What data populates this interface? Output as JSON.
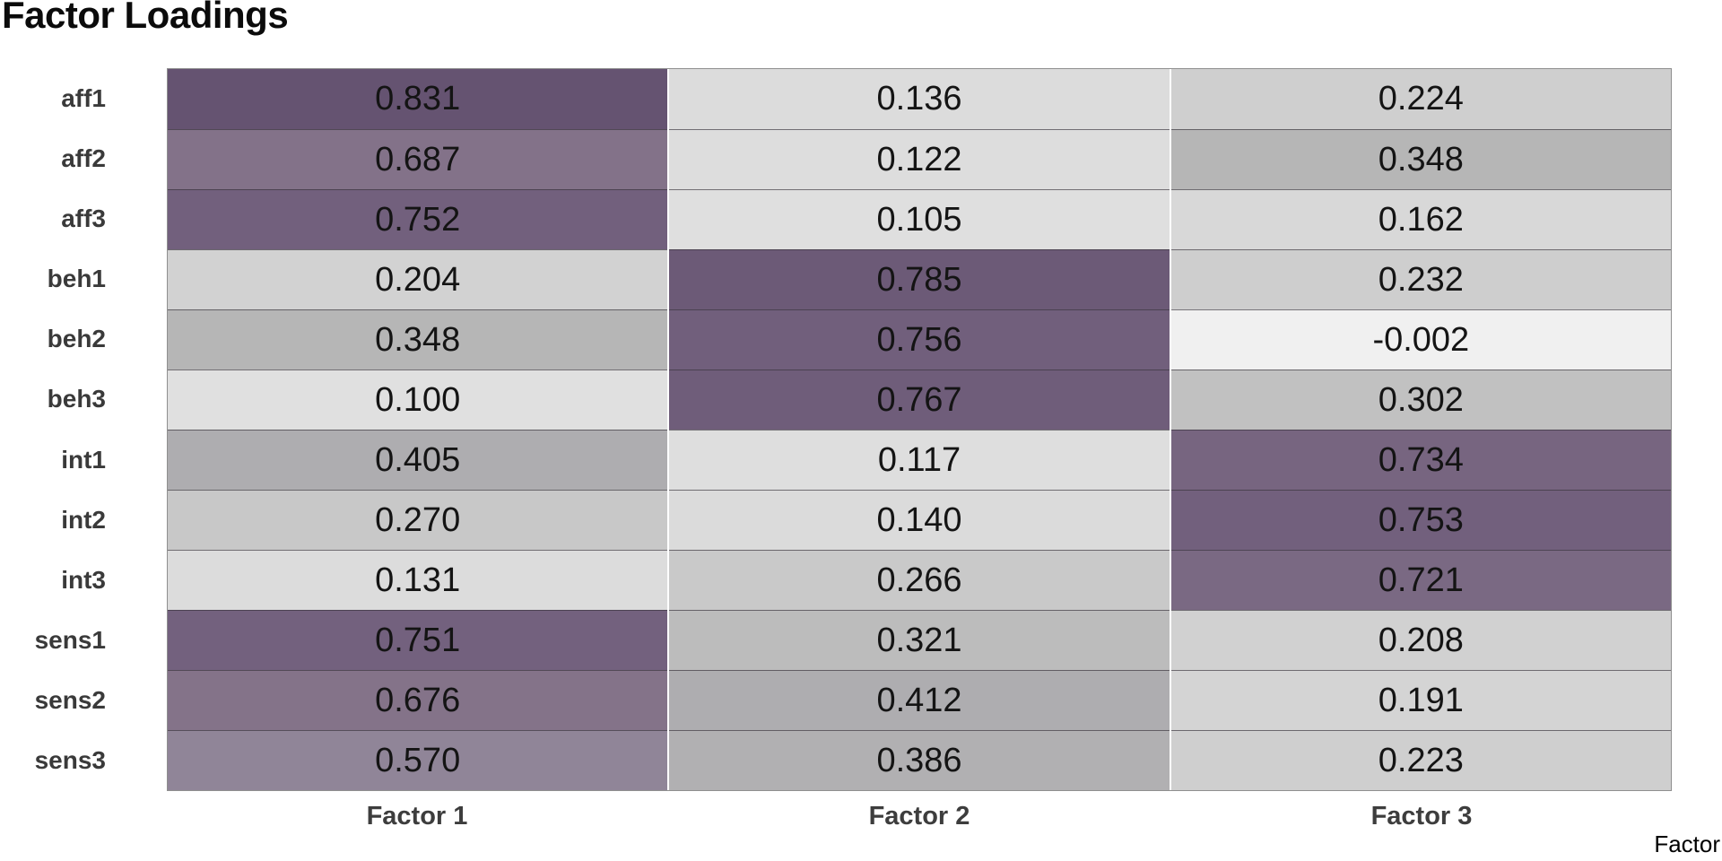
{
  "title": "Factor Loadings",
  "axis_title": "Factor",
  "columns": [
    "Factor 1",
    "Factor 2",
    "Factor 3"
  ],
  "rows": [
    {
      "label": "aff1",
      "cells": [
        {
          "value": "0.831",
          "color": "#655371"
        },
        {
          "value": "0.136",
          "color": "#dcdcdc"
        },
        {
          "value": "0.224",
          "color": "#cfcfcf"
        }
      ]
    },
    {
      "label": "aff2",
      "cells": [
        {
          "value": "0.687",
          "color": "#837289"
        },
        {
          "value": "0.122",
          "color": "#dddddd"
        },
        {
          "value": "0.348",
          "color": "#b6b6b6"
        }
      ]
    },
    {
      "label": "aff3",
      "cells": [
        {
          "value": "0.752",
          "color": "#72607d"
        },
        {
          "value": "0.105",
          "color": "#dfdfdf"
        },
        {
          "value": "0.162",
          "color": "#d8d8d8"
        }
      ]
    },
    {
      "label": "beh1",
      "cells": [
        {
          "value": "0.204",
          "color": "#d2d2d2"
        },
        {
          "value": "0.785",
          "color": "#6c5a77"
        },
        {
          "value": "0.232",
          "color": "#cecece"
        }
      ]
    },
    {
      "label": "beh2",
      "cells": [
        {
          "value": "0.348",
          "color": "#b6b6b6"
        },
        {
          "value": "0.756",
          "color": "#715f7c"
        },
        {
          "value": "-0.002",
          "color": "#f0f0f0"
        }
      ]
    },
    {
      "label": "beh3",
      "cells": [
        {
          "value": "0.100",
          "color": "#e0e0e0"
        },
        {
          "value": "0.767",
          "color": "#6f5d7a"
        },
        {
          "value": "0.302",
          "color": "#c1c1c1"
        }
      ]
    },
    {
      "label": "int1",
      "cells": [
        {
          "value": "0.405",
          "color": "#aeadb0"
        },
        {
          "value": "0.117",
          "color": "#dedede"
        },
        {
          "value": "0.734",
          "color": "#776580"
        }
      ]
    },
    {
      "label": "int2",
      "cells": [
        {
          "value": "0.270",
          "color": "#c8c8c8"
        },
        {
          "value": "0.140",
          "color": "#dbdbdb"
        },
        {
          "value": "0.753",
          "color": "#72607d"
        }
      ]
    },
    {
      "label": "int3",
      "cells": [
        {
          "value": "0.131",
          "color": "#dcdcdc"
        },
        {
          "value": "0.266",
          "color": "#c9c9c9"
        },
        {
          "value": "0.721",
          "color": "#7a6983"
        }
      ]
    },
    {
      "label": "sens1",
      "cells": [
        {
          "value": "0.751",
          "color": "#73617e"
        },
        {
          "value": "0.321",
          "color": "#bcbcbc"
        },
        {
          "value": "0.208",
          "color": "#d1d1d1"
        }
      ]
    },
    {
      "label": "sens2",
      "cells": [
        {
          "value": "0.676",
          "color": "#847389"
        },
        {
          "value": "0.412",
          "color": "#aeadb0"
        },
        {
          "value": "0.191",
          "color": "#d4d4d4"
        }
      ]
    },
    {
      "label": "sens3",
      "cells": [
        {
          "value": "0.570",
          "color": "#908598"
        },
        {
          "value": "0.386",
          "color": "#b1b0b2"
        },
        {
          "value": "0.223",
          "color": "#cfcfcf"
        }
      ]
    }
  ],
  "colors": {
    "title_text": "#0b0b0b",
    "label_text": "#3a3a3a",
    "cell_text": "#141414",
    "grid_line": "rgba(55,50,58,0.65)",
    "outer_border": "#8f8f8f",
    "column_gap": "#ffffff",
    "scale_low": "#f0f0f0",
    "scale_high": "#655371"
  },
  "chart_data": {
    "type": "heatmap",
    "title": "Factor Loadings",
    "xlabel": "Factor",
    "ylabel": "",
    "x_categories": [
      "Factor 1",
      "Factor 2",
      "Factor 3"
    ],
    "y_categories": [
      "aff1",
      "aff2",
      "aff3",
      "beh1",
      "beh2",
      "beh3",
      "int1",
      "int2",
      "int3",
      "sens1",
      "sens2",
      "sens3"
    ],
    "values": [
      [
        0.831,
        0.136,
        0.224
      ],
      [
        0.687,
        0.122,
        0.348
      ],
      [
        0.752,
        0.105,
        0.162
      ],
      [
        0.204,
        0.785,
        0.232
      ],
      [
        0.348,
        0.756,
        -0.002
      ],
      [
        0.1,
        0.767,
        0.302
      ],
      [
        0.405,
        0.117,
        0.734
      ],
      [
        0.27,
        0.14,
        0.753
      ],
      [
        0.131,
        0.266,
        0.721
      ],
      [
        0.751,
        0.321,
        0.208
      ],
      [
        0.676,
        0.412,
        0.191
      ],
      [
        0.57,
        0.386,
        0.223
      ]
    ],
    "value_labels_shown": true,
    "decimals": 3,
    "color_scale": {
      "min": -0.002,
      "max": 0.831,
      "low_color": "#f0f0f0",
      "high_color": "#655371"
    },
    "legend": "none",
    "grid": "cell-borders"
  }
}
